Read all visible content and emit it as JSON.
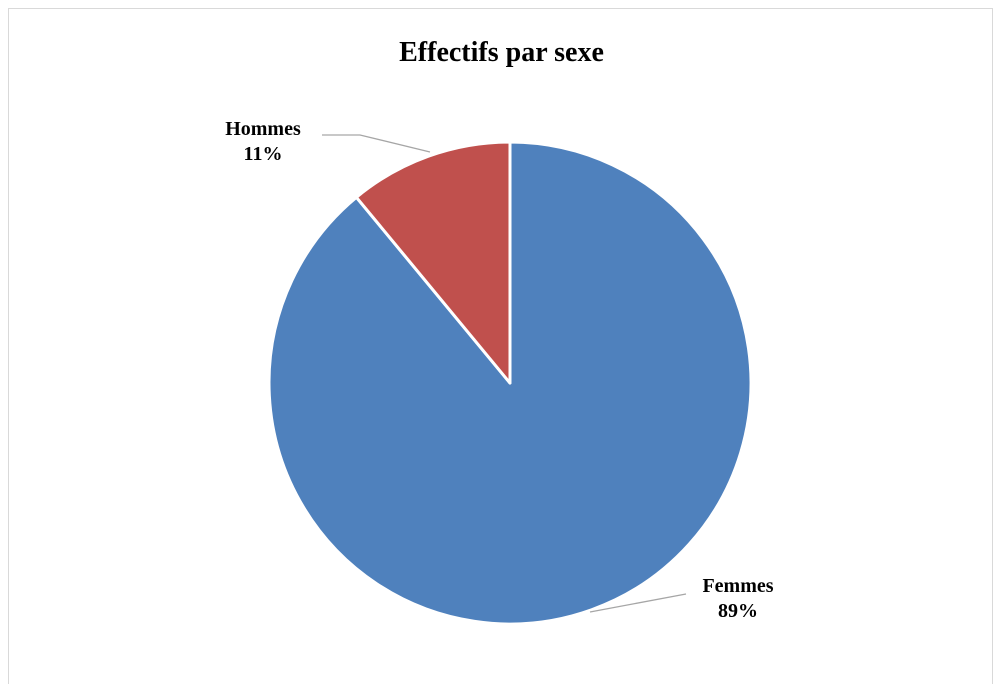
{
  "chart_data": {
    "type": "pie",
    "title": "Effectifs par sexe",
    "slices": [
      {
        "label": "Femmes",
        "value": 89,
        "value_label": "89%",
        "color": "#4f81bd"
      },
      {
        "label": "Hommes",
        "value": 11,
        "value_label": "11%",
        "color": "#c0504d"
      }
    ],
    "start_angle_deg": 0,
    "direction": "clockwise",
    "slice_border_color": "#ffffff",
    "leader_line_color": "#a6a6a6",
    "legend": "none",
    "data_labels": "outside with leader lines"
  }
}
